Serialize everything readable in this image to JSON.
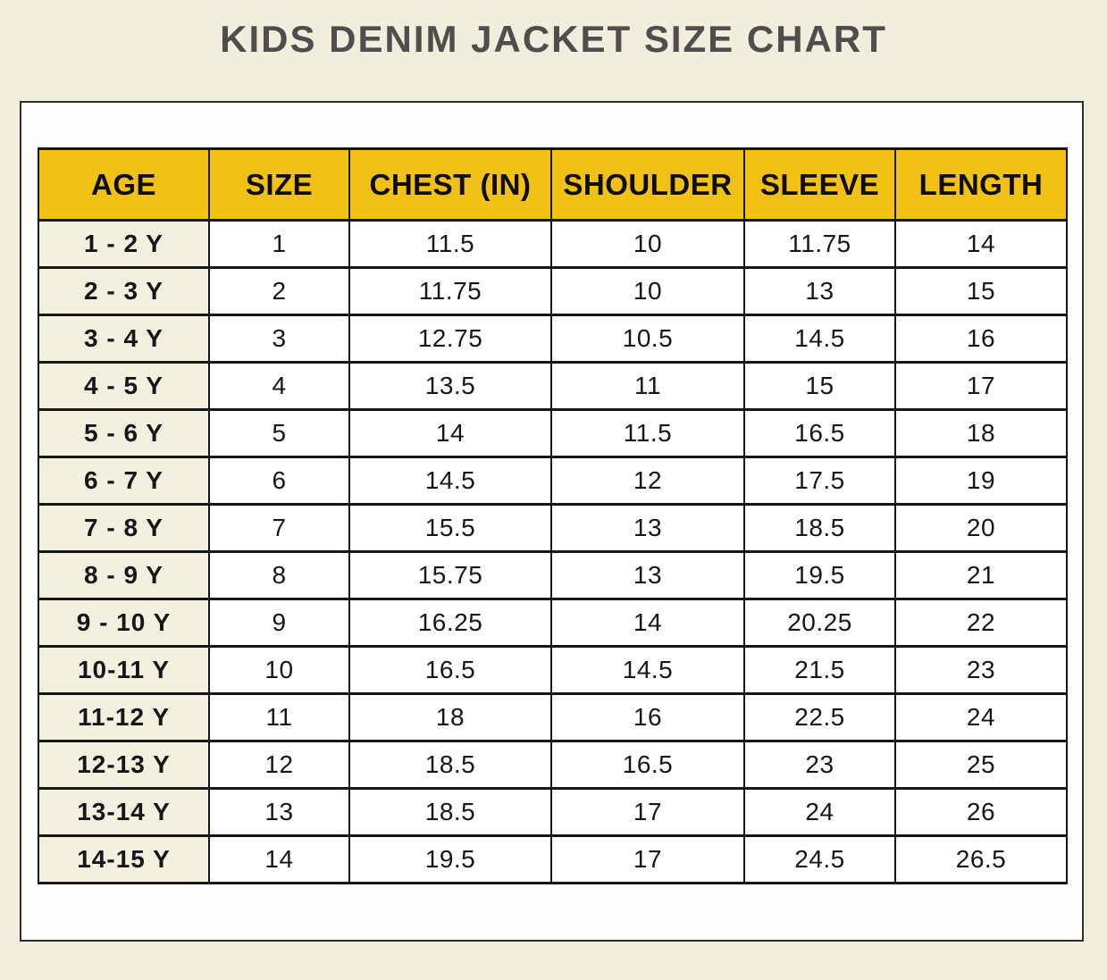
{
  "page": {
    "background_color": "#f1eedd",
    "card_background": "#fefefe",
    "accent_yellow": "#f2c115",
    "age_column_background": "#f4f0e0",
    "table_border_color": "#161616",
    "title_color": "#4e4e4c"
  },
  "chart_data": {
    "type": "table",
    "title": "KIDS DENIM JACKET SIZE CHART",
    "columns": [
      "AGE",
      "SIZE",
      "CHEST (IN)",
      "SHOULDER",
      "SLEEVE",
      "LENGTH"
    ],
    "rows": [
      [
        "1 - 2 Y",
        "1",
        "11.5",
        "10",
        "11.75",
        "14"
      ],
      [
        "2 - 3 Y",
        "2",
        "11.75",
        "10",
        "13",
        "15"
      ],
      [
        "3 - 4 Y",
        "3",
        "12.75",
        "10.5",
        "14.5",
        "16"
      ],
      [
        "4 - 5 Y",
        "4",
        "13.5",
        "11",
        "15",
        "17"
      ],
      [
        "5 - 6 Y",
        "5",
        "14",
        "11.5",
        "16.5",
        "18"
      ],
      [
        "6 - 7 Y",
        "6",
        "14.5",
        "12",
        "17.5",
        "19"
      ],
      [
        "7 - 8 Y",
        "7",
        "15.5",
        "13",
        "18.5",
        "20"
      ],
      [
        "8 - 9 Y",
        "8",
        "15.75",
        "13",
        "19.5",
        "21"
      ],
      [
        "9 - 10 Y",
        "9",
        "16.25",
        "14",
        "20.25",
        "22"
      ],
      [
        "10-11 Y",
        "10",
        "16.5",
        "14.5",
        "21.5",
        "23"
      ],
      [
        "11-12 Y",
        "11",
        "18",
        "16",
        "22.5",
        "24"
      ],
      [
        "12-13 Y",
        "12",
        "18.5",
        "16.5",
        "23",
        "25"
      ],
      [
        "13-14 Y",
        "13",
        "18.5",
        "17",
        "24",
        "26"
      ],
      [
        "14-15 Y",
        "14",
        "19.5",
        "17",
        "24.5",
        "26.5"
      ]
    ]
  }
}
